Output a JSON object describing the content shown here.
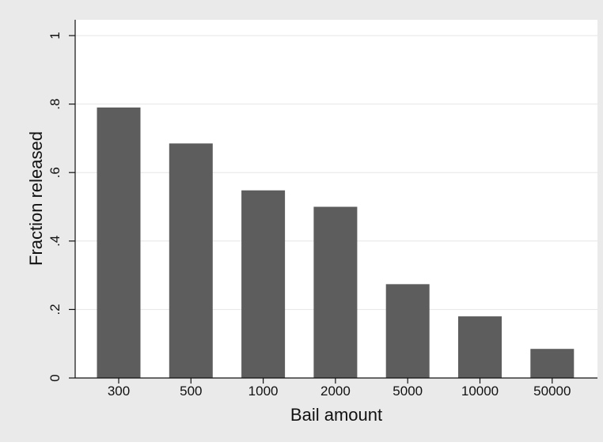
{
  "chart_data": {
    "type": "bar",
    "title": "",
    "xlabel": "Bail amount",
    "ylabel": "Fraction released",
    "categories": [
      "300",
      "500",
      "1000",
      "2000",
      "5000",
      "10000",
      "50000"
    ],
    "values": [
      0.79,
      0.685,
      0.548,
      0.5,
      0.274,
      0.18,
      0.085
    ],
    "ylim": [
      0,
      1
    ],
    "yticks": [
      0,
      0.2,
      0.4,
      0.6,
      0.8,
      1
    ],
    "ytick_labels": [
      "0",
      ".2",
      ".4",
      ".6",
      ".8",
      "1"
    ],
    "grid": true,
    "legend": "none",
    "colors": {
      "bar": "#5d5d5d",
      "background": "#eaeaea",
      "plot_area": "#ffffff",
      "grid": "#e6e6e6"
    }
  }
}
